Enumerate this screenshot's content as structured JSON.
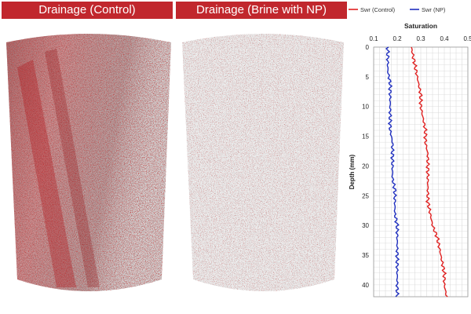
{
  "panels": {
    "left_title": "Drainage (Control)",
    "right_title": "Drainage (Brine with NP)"
  },
  "colors": {
    "banner": "#c1272d",
    "control": "#e02020",
    "np": "#1f2fbf",
    "grid": "#d6d6d6"
  },
  "chart_data": {
    "type": "line",
    "title": "Saturation",
    "xlabel": "Saturation",
    "ylabel": "Depth (mm)",
    "xlim": [
      0.1,
      0.5
    ],
    "ylim": [
      0,
      42
    ],
    "xticks": [
      0.1,
      0.2,
      0.3,
      0.4,
      0.5
    ],
    "yticks": [
      0,
      5,
      10,
      15,
      20,
      25,
      30,
      35,
      40
    ],
    "xtick_labels": [
      "0.1",
      "0.2",
      "0.3",
      "0.4",
      "0.5"
    ],
    "ytick_labels": [
      "0",
      "5",
      "10",
      "15",
      "20",
      "25",
      "30",
      "35",
      "40"
    ],
    "grid": true,
    "legend_position": "top",
    "series": [
      {
        "name": "Swr (Control)",
        "color": "#e02020",
        "depth": [
          0,
          2,
          4,
          6,
          8,
          10,
          12,
          14,
          16,
          18,
          20,
          22,
          24,
          26,
          28,
          30,
          32,
          34,
          36,
          38,
          40,
          42
        ],
        "values": [
          0.26,
          0.27,
          0.28,
          0.29,
          0.3,
          0.3,
          0.31,
          0.32,
          0.32,
          0.33,
          0.33,
          0.33,
          0.33,
          0.33,
          0.34,
          0.35,
          0.37,
          0.38,
          0.39,
          0.4,
          0.4,
          0.41
        ]
      },
      {
        "name": "Swr (NP)",
        "color": "#1f2fbf",
        "depth": [
          0,
          2,
          4,
          6,
          8,
          10,
          12,
          14,
          16,
          18,
          20,
          22,
          24,
          26,
          28,
          30,
          32,
          34,
          36,
          38,
          40,
          42
        ],
        "values": [
          0.16,
          0.16,
          0.16,
          0.17,
          0.17,
          0.17,
          0.17,
          0.17,
          0.18,
          0.18,
          0.18,
          0.18,
          0.19,
          0.19,
          0.19,
          0.2,
          0.2,
          0.2,
          0.2,
          0.2,
          0.2,
          0.2
        ]
      }
    ]
  }
}
